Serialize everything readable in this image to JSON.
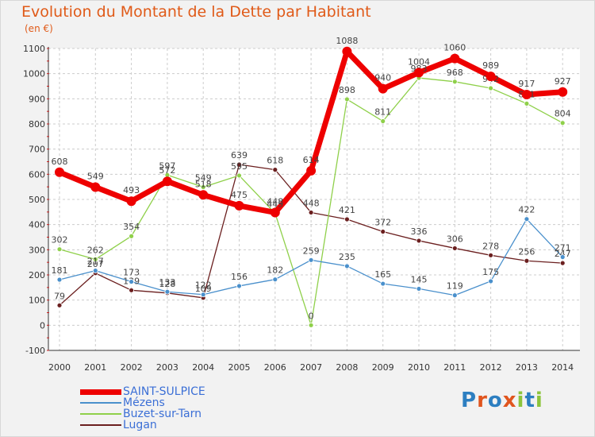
{
  "title": "Evolution du Montant de la Dette par Habitant",
  "unit_label": "(en €)",
  "logo_text": "Proxiti",
  "logo_colors": [
    "#2d7fc1",
    "#e0551e",
    "#2d7fc1",
    "#e0551e",
    "#8cc43c",
    "#2d7fc1",
    "#8cc43c"
  ],
  "chart_data": {
    "type": "line",
    "x": [
      "2000",
      "2001",
      "2002",
      "2003",
      "2004",
      "2005",
      "2006",
      "2007",
      "2008",
      "2009",
      "2010",
      "2011",
      "2012",
      "2013",
      "2014"
    ],
    "ylim": [
      -100,
      1100
    ],
    "yticks": [
      -100,
      0,
      100,
      200,
      300,
      400,
      500,
      600,
      700,
      800,
      900,
      1000,
      1100
    ],
    "grid": true,
    "legend_position": "bottom-left",
    "series": [
      {
        "name": "Lugan",
        "color": "#6b1f1f",
        "values": [
          79,
          207,
          139,
          128,
          109,
          639,
          618,
          448,
          421,
          372,
          336,
          306,
          278,
          256,
          247
        ]
      },
      {
        "name": "Buzet-sur-Tarn",
        "color": "#8fd04a",
        "values": [
          302,
          262,
          354,
          597,
          549,
          595,
          445,
          0,
          898,
          811,
          983,
          968,
          942,
          881,
          804
        ]
      },
      {
        "name": "Mézens",
        "color": "#4a90cc",
        "values": [
          181,
          217,
          173,
          133,
          122,
          156,
          182,
          259,
          235,
          165,
          145,
          119,
          175,
          422,
          271
        ]
      },
      {
        "name": "SAINT-SULPICE",
        "color": "#ee0000",
        "values": [
          608,
          549,
          493,
          572,
          518,
          475,
          448,
          614,
          1088,
          940,
          1004,
          1060,
          989,
          917,
          927
        ]
      }
    ]
  },
  "legend": [
    {
      "name": "SAINT-SULPICE",
      "color": "#ee0000",
      "text_color": "#3b6fd6",
      "weight": 7
    },
    {
      "name": "Mézens",
      "color": "#4a90cc",
      "text_color": "#3b6fd6",
      "weight": 2
    },
    {
      "name": "Buzet-sur-Tarn",
      "color": "#8fd04a",
      "text_color": "#3b6fd6",
      "weight": 2
    },
    {
      "name": "Lugan",
      "color": "#6b1f1f",
      "text_color": "#3b6fd6",
      "weight": 2
    }
  ]
}
